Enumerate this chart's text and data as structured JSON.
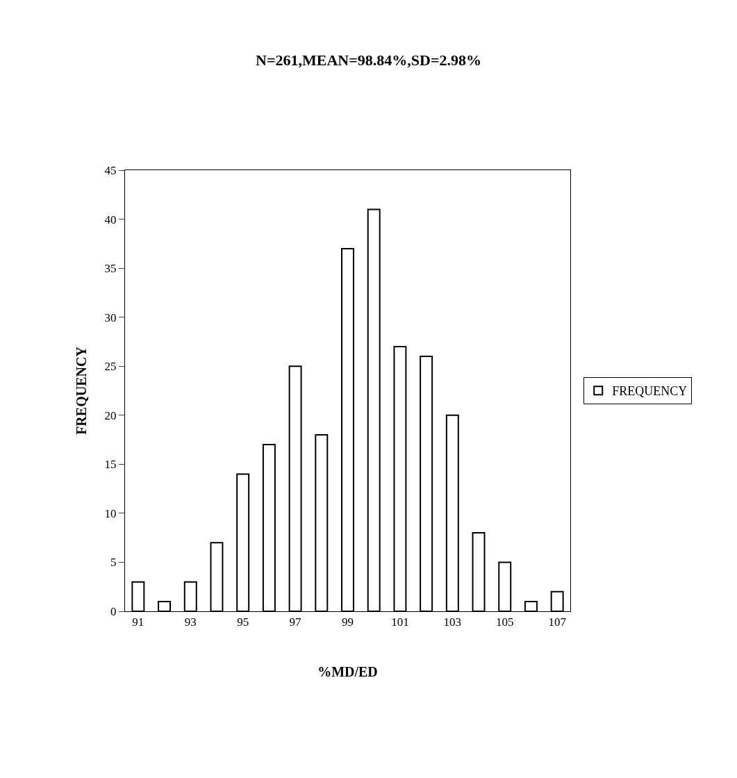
{
  "chart_data": {
    "type": "bar",
    "title": "N=261,MEAN=98.84%,SD=2.98%",
    "xlabel": "%MD/ED",
    "ylabel": "FREQUENCY",
    "categories": [
      "91",
      null,
      "93",
      null,
      "95",
      null,
      "97",
      null,
      "99",
      null,
      "101",
      null,
      "103",
      null,
      "105",
      null,
      "107"
    ],
    "series": [
      {
        "name": "FREQUENCY",
        "color": "#ffffff",
        "values": [
          3,
          1,
          3,
          7,
          14,
          17,
          25,
          18,
          37,
          41,
          27,
          26,
          20,
          8,
          5,
          1,
          2
        ]
      }
    ],
    "ylim": [
      0,
      45
    ],
    "yticks": [
      0,
      5,
      10,
      15,
      20,
      25,
      30,
      35,
      40,
      45
    ],
    "grid": false,
    "legend": "right"
  }
}
